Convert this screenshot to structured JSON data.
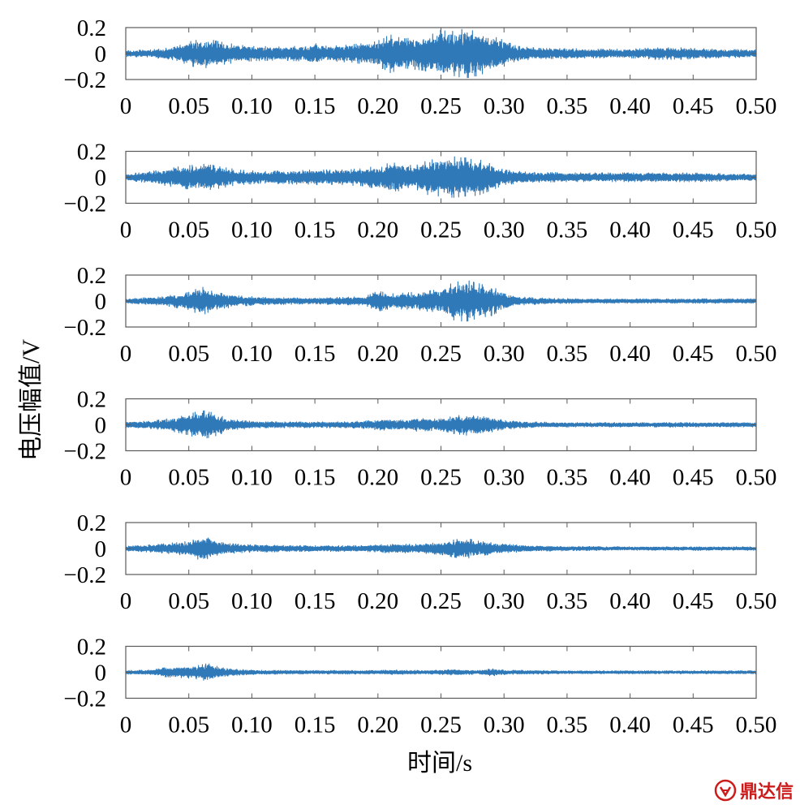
{
  "chart_data": {
    "type": "line",
    "ylabel": "电压幅值/V",
    "xlabel": "时间/s",
    "xlim": [
      0,
      0.5
    ],
    "ylim": [
      -0.2,
      0.2
    ],
    "x_ticks": [
      0,
      0.05,
      0.1,
      0.15,
      0.2,
      0.25,
      0.3,
      0.35,
      0.4,
      0.45,
      0.5
    ],
    "x_tick_labels": [
      "0",
      "0.05",
      "0.10",
      "0.15",
      "0.20",
      "0.25",
      "0.30",
      "0.35",
      "0.40",
      "0.45",
      "0.50"
    ],
    "y_ticks": [
      0.2,
      0,
      -0.2
    ],
    "y_tick_labels": [
      "0.2",
      "0",
      "−0.2"
    ],
    "grid": false,
    "series_color": "#2f79b9",
    "panels": [
      {
        "envelope": {
          "t": [
            0,
            0.02,
            0.04,
            0.05,
            0.06,
            0.07,
            0.08,
            0.1,
            0.12,
            0.14,
            0.15,
            0.16,
            0.18,
            0.2,
            0.21,
            0.22,
            0.24,
            0.25,
            0.26,
            0.27,
            0.28,
            0.29,
            0.3,
            0.31,
            0.33,
            0.35,
            0.37,
            0.4,
            0.42,
            0.44,
            0.45,
            0.47,
            0.5
          ],
          "amp": [
            0.02,
            0.025,
            0.045,
            0.08,
            0.1,
            0.09,
            0.07,
            0.05,
            0.045,
            0.05,
            0.07,
            0.05,
            0.06,
            0.085,
            0.13,
            0.1,
            0.12,
            0.16,
            0.15,
            0.17,
            0.15,
            0.12,
            0.09,
            0.05,
            0.035,
            0.035,
            0.03,
            0.03,
            0.04,
            0.04,
            0.035,
            0.03,
            0.025
          ]
        }
      },
      {
        "envelope": {
          "t": [
            0,
            0.02,
            0.04,
            0.06,
            0.07,
            0.09,
            0.11,
            0.13,
            0.15,
            0.17,
            0.19,
            0.2,
            0.21,
            0.23,
            0.24,
            0.25,
            0.26,
            0.27,
            0.28,
            0.29,
            0.3,
            0.32,
            0.35,
            0.4,
            0.45,
            0.5
          ],
          "amp": [
            0.02,
            0.04,
            0.07,
            0.09,
            0.08,
            0.05,
            0.04,
            0.045,
            0.05,
            0.05,
            0.06,
            0.08,
            0.1,
            0.08,
            0.12,
            0.13,
            0.14,
            0.13,
            0.12,
            0.09,
            0.05,
            0.035,
            0.03,
            0.03,
            0.03,
            0.02
          ]
        }
      },
      {
        "envelope": {
          "t": [
            0,
            0.03,
            0.05,
            0.06,
            0.07,
            0.09,
            0.11,
            0.15,
            0.19,
            0.2,
            0.21,
            0.23,
            0.25,
            0.26,
            0.27,
            0.28,
            0.29,
            0.3,
            0.31,
            0.33,
            0.36,
            0.4,
            0.45,
            0.5
          ],
          "amp": [
            0.015,
            0.03,
            0.06,
            0.1,
            0.06,
            0.035,
            0.025,
            0.02,
            0.03,
            0.07,
            0.05,
            0.06,
            0.08,
            0.13,
            0.14,
            0.12,
            0.1,
            0.06,
            0.03,
            0.02,
            0.015,
            0.015,
            0.015,
            0.015
          ]
        }
      },
      {
        "envelope": {
          "t": [
            0,
            0.02,
            0.04,
            0.05,
            0.06,
            0.07,
            0.08,
            0.09,
            0.11,
            0.13,
            0.15,
            0.17,
            0.19,
            0.2,
            0.21,
            0.22,
            0.23,
            0.24,
            0.25,
            0.26,
            0.27,
            0.28,
            0.29,
            0.3,
            0.32,
            0.35,
            0.4,
            0.45,
            0.5
          ],
          "amp": [
            0.02,
            0.025,
            0.05,
            0.07,
            0.1,
            0.08,
            0.045,
            0.03,
            0.02,
            0.02,
            0.02,
            0.02,
            0.025,
            0.035,
            0.04,
            0.03,
            0.045,
            0.04,
            0.04,
            0.06,
            0.07,
            0.075,
            0.05,
            0.03,
            0.02,
            0.015,
            0.015,
            0.015,
            0.015
          ]
        }
      },
      {
        "envelope": {
          "t": [
            0,
            0.02,
            0.04,
            0.05,
            0.06,
            0.065,
            0.07,
            0.08,
            0.1,
            0.13,
            0.16,
            0.19,
            0.21,
            0.23,
            0.25,
            0.26,
            0.27,
            0.28,
            0.29,
            0.3,
            0.32,
            0.35,
            0.4,
            0.45,
            0.5
          ],
          "amp": [
            0.015,
            0.025,
            0.04,
            0.05,
            0.08,
            0.09,
            0.05,
            0.035,
            0.025,
            0.02,
            0.02,
            0.02,
            0.03,
            0.03,
            0.04,
            0.06,
            0.07,
            0.05,
            0.04,
            0.03,
            0.02,
            0.015,
            0.012,
            0.012,
            0.012
          ]
        }
      },
      {
        "envelope": {
          "t": [
            0,
            0.02,
            0.03,
            0.04,
            0.05,
            0.06,
            0.065,
            0.07,
            0.08,
            0.1,
            0.13,
            0.16,
            0.2,
            0.21,
            0.24,
            0.25,
            0.26,
            0.28,
            0.29,
            0.3,
            0.35,
            0.4,
            0.45,
            0.5
          ],
          "amp": [
            0.012,
            0.015,
            0.03,
            0.035,
            0.04,
            0.05,
            0.06,
            0.045,
            0.025,
            0.015,
            0.012,
            0.012,
            0.012,
            0.015,
            0.012,
            0.015,
            0.02,
            0.012,
            0.025,
            0.015,
            0.01,
            0.01,
            0.01,
            0.01
          ]
        }
      }
    ]
  },
  "watermark": {
    "text": "鼎达信",
    "color": "#cc1b1b"
  }
}
